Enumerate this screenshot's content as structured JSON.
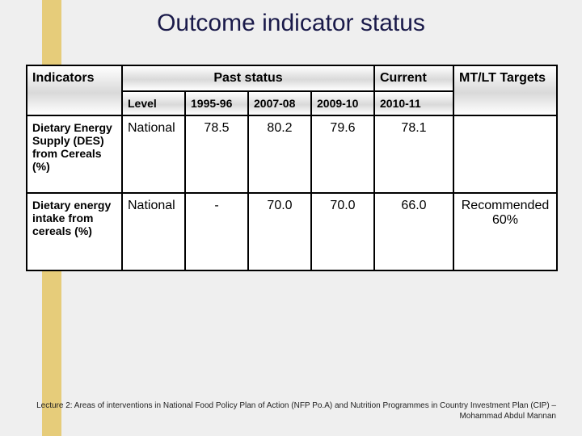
{
  "slide": {
    "title": "Outcome indicator status",
    "accent_color": "#e6cc7a",
    "background_color": "#efefef"
  },
  "table": {
    "border_color": "#000000",
    "header_gradient": [
      "#ffffff",
      "#d9d9d9",
      "#ffffff"
    ],
    "columns": {
      "indicators": "Indicators",
      "past_status": "Past status",
      "current": "Current",
      "targets": "MT/LT Targets",
      "sub": {
        "level": "Level",
        "y1": "1995-96",
        "y2": "2007-08",
        "y3": "2009-10",
        "curr_sub": "2010-11"
      }
    },
    "rows": [
      {
        "indicator": "Dietary Energy Supply (DES) from Cereals (%)",
        "level": "National",
        "y1": "78.5",
        "y2": "80.2",
        "y3": "79.6",
        "current": "78.1",
        "targets": ""
      },
      {
        "indicator": "Dietary energy intake from cereals (%)",
        "level": "National",
        "y1": "-",
        "y2": "70.0",
        "y3": "70.0",
        "current": "66.0",
        "targets": "Recommended 60%"
      }
    ]
  },
  "footnote": "Lecture 2: Areas of interventions in National Food Policy Plan of Action (NFP Po.A) and Nutrition Programmes in Country Investment Plan (CIP) –Mohammad Abdul Mannan"
}
